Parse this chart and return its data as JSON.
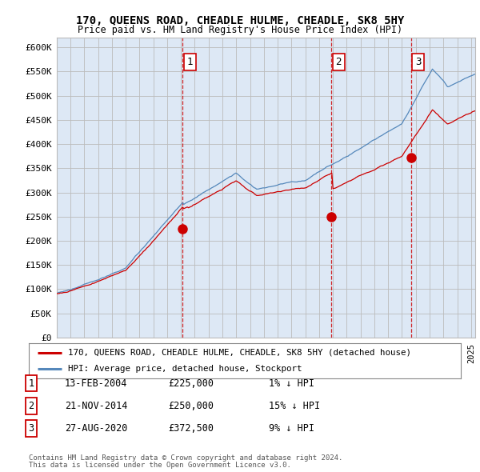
{
  "title1": "170, QUEENS ROAD, CHEADLE HULME, CHEADLE, SK8 5HY",
  "title2": "Price paid vs. HM Land Registry's House Price Index (HPI)",
  "ylim": [
    0,
    620000
  ],
  "yticks": [
    0,
    50000,
    100000,
    150000,
    200000,
    250000,
    300000,
    350000,
    400000,
    450000,
    500000,
    550000,
    600000
  ],
  "ytick_labels": [
    "£0",
    "£50K",
    "£100K",
    "£150K",
    "£200K",
    "£250K",
    "£300K",
    "£350K",
    "£400K",
    "£450K",
    "£500K",
    "£550K",
    "£600K"
  ],
  "xlim_start": 1995.0,
  "xlim_end": 2025.3,
  "red_line_color": "#cc0000",
  "blue_line_color": "#5588bb",
  "plot_bg_color": "#dde8f5",
  "transaction_dates": [
    2004.11,
    2014.89,
    2020.65
  ],
  "transaction_values": [
    225000,
    250000,
    372500
  ],
  "transaction_labels": [
    "1",
    "2",
    "3"
  ],
  "legend_line1": "170, QUEENS ROAD, CHEADLE HULME, CHEADLE, SK8 5HY (detached house)",
  "legend_line2": "HPI: Average price, detached house, Stockport",
  "table_rows": [
    {
      "num": "1",
      "date": "13-FEB-2004",
      "price": "£225,000",
      "hpi": "1% ↓ HPI"
    },
    {
      "num": "2",
      "date": "21-NOV-2014",
      "price": "£250,000",
      "hpi": "15% ↓ HPI"
    },
    {
      "num": "3",
      "date": "27-AUG-2020",
      "price": "£372,500",
      "hpi": "9% ↓ HPI"
    }
  ],
  "footnote1": "Contains HM Land Registry data © Crown copyright and database right 2024.",
  "footnote2": "This data is licensed under the Open Government Licence v3.0.",
  "bg_color": "#ffffff",
  "grid_color": "#bbbbbb"
}
